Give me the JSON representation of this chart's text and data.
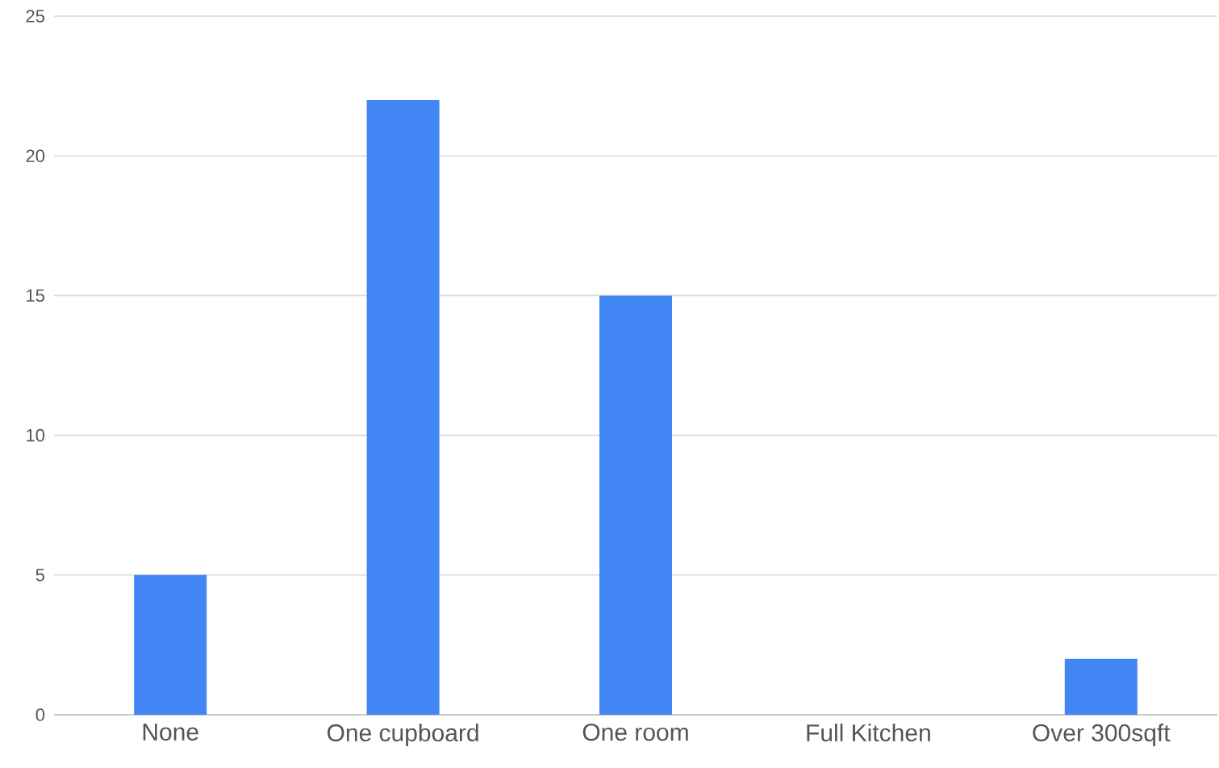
{
  "chart_data": {
    "type": "bar",
    "categories": [
      "None",
      "One cupboard",
      "One room",
      "Full Kitchen",
      "Over 300sqft"
    ],
    "values": [
      5,
      22,
      15,
      0,
      2
    ],
    "color": "#4285f4",
    "ylim": [
      0,
      25
    ],
    "yticks": [
      0,
      5,
      10,
      15,
      20,
      25
    ],
    "grid": "y"
  }
}
